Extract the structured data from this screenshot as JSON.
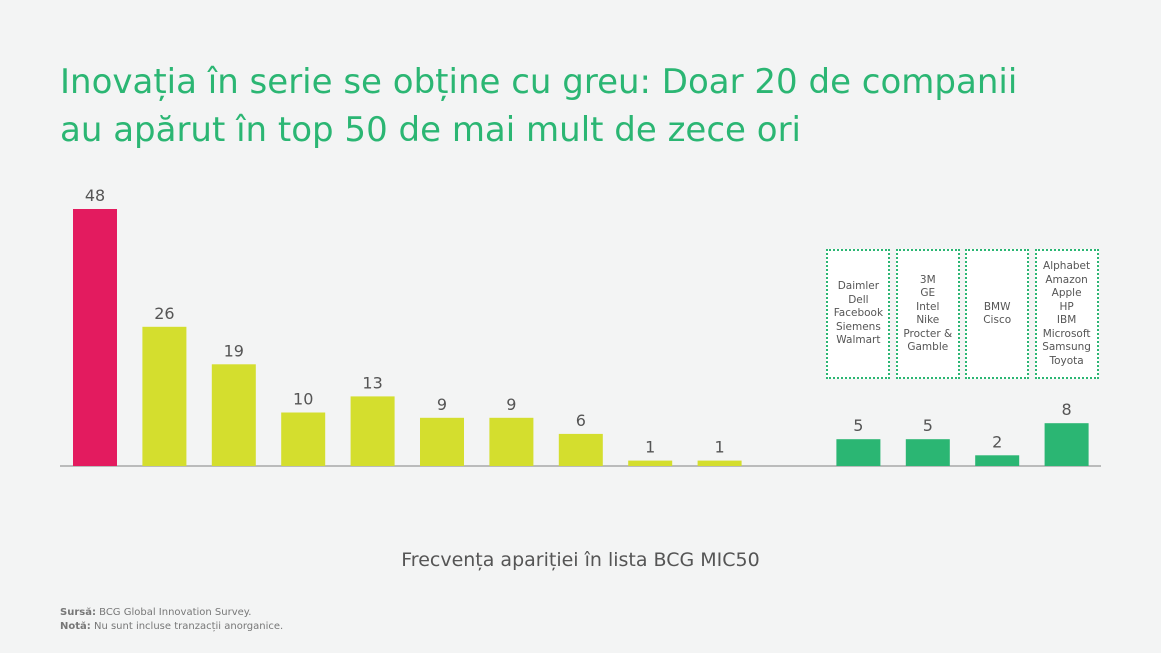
{
  "title_line1": "Inovația în serie se obține cu greu: Doar 20 de companii",
  "title_line2": "au apărut în top 50 de mai mult de zece ori",
  "colors": {
    "highlight": "#e31b5f",
    "main": "#d4de2e",
    "top": "#2bb673",
    "axis": "#999999",
    "value_label": "#555555",
    "box_border": "#2bb673"
  },
  "chart_data": {
    "type": "bar",
    "xlabel": "Frecvența apariției în lista BCG MIC50",
    "ylabel": "",
    "ylim": [
      0,
      48
    ],
    "grid": false,
    "categories": [
      "",
      "",
      "",
      "",
      "",
      "",
      "",
      "",
      "",
      "",
      "",
      "",
      "",
      "",
      ""
    ],
    "values": [
      48,
      26,
      19,
      10,
      13,
      9,
      9,
      6,
      1,
      1,
      null,
      5,
      5,
      2,
      8
    ],
    "bar_colors": [
      "highlight",
      "main",
      "main",
      "main",
      "main",
      "main",
      "main",
      "main",
      "main",
      "main",
      null,
      "top",
      "top",
      "top",
      "top"
    ],
    "annotations": [
      {
        "bar_index": 11,
        "companies": [
          "Daimler",
          "Dell",
          "Facebook",
          "Siemens",
          "Walmart"
        ]
      },
      {
        "bar_index": 12,
        "companies": [
          "3M",
          "GE",
          "Intel",
          "Nike",
          "Procter &",
          "Gamble"
        ]
      },
      {
        "bar_index": 13,
        "companies": [
          "BMW",
          "Cisco"
        ]
      },
      {
        "bar_index": 14,
        "companies": [
          "Alphabet",
          "Amazon",
          "Apple",
          "HP",
          "IBM",
          "Microsoft",
          "Samsung",
          "Toyota"
        ]
      }
    ]
  },
  "notes": {
    "source_label": "Sursă:",
    "source_text": " BCG Global Innovation Survey.",
    "note_label": "Notă:",
    "note_text": " Nu sunt incluse tranzacții anorganice."
  }
}
